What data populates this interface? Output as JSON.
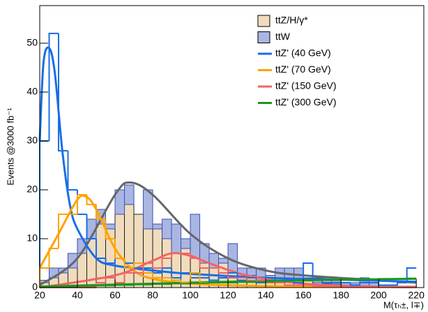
{
  "chart_data": {
    "type": "histogram",
    "xlabel": "M(τₕ±, l∓)",
    "ylabel": "Events @3000 fb⁻¹",
    "bins": [
      20,
      25,
      30,
      35,
      40,
      45,
      50,
      55,
      60,
      65,
      70,
      75,
      80,
      85,
      90,
      95,
      100,
      105,
      110,
      115,
      120,
      125,
      130,
      135,
      140,
      145,
      150,
      155,
      160,
      165,
      170,
      175,
      180,
      185,
      190,
      195,
      200,
      205,
      210,
      215,
      220
    ],
    "xlim": [
      20,
      224
    ],
    "xticks": [
      20,
      40,
      60,
      80,
      100,
      120,
      140,
      160,
      180,
      200,
      220
    ],
    "ylim": [
      0,
      57.7
    ],
    "yticks": [
      0,
      10,
      20,
      30,
      40,
      50
    ],
    "legend": "upper right",
    "series": [
      {
        "name": "ttZ/H/γ*",
        "color": "#f0dcbc",
        "stacked": true,
        "values": [
          1,
          2,
          3,
          4,
          7,
          10,
          13,
          12,
          15,
          17,
          15,
          12,
          12,
          10,
          7,
          8,
          6,
          5,
          4,
          5,
          3,
          2,
          2.5,
          1.5,
          2,
          1.5,
          1,
          1,
          1.5,
          1,
          0.8,
          0.7,
          0.5,
          0.5,
          0.4,
          0.3,
          0.2,
          0.2,
          0.1,
          0.1
        ]
      },
      {
        "name": "ttW",
        "color": "#aab6e2",
        "stacked": true,
        "values": [
          0.5,
          2,
          1,
          3,
          3,
          4,
          3,
          1,
          5,
          4,
          0,
          8,
          1,
          4,
          6,
          2,
          9,
          4,
          3,
          1,
          6,
          2,
          1.5,
          2.5,
          0.5,
          2.5,
          3,
          3,
          0.5,
          1,
          1.2,
          0.8,
          0.5,
          0.5,
          1.6,
          0.7,
          0.3,
          0.3,
          0.2,
          0.2
        ]
      },
      {
        "name": "ttZ' (40 GeV)",
        "color": "#1a6ee6",
        "stacked": false,
        "values": [
          30,
          52,
          28,
          20,
          15,
          10,
          6,
          5,
          6,
          5,
          4,
          4,
          3,
          4,
          2,
          3,
          2,
          2,
          1.5,
          2,
          3,
          1.5,
          2,
          1,
          2,
          1,
          1.5,
          1,
          5,
          1.5,
          1,
          1,
          1,
          0.5,
          1,
          1,
          0.5,
          0.5,
          1,
          4
        ]
      },
      {
        "name": "ttZ' (70 GeV)",
        "color": "#ffa200",
        "stacked": false,
        "values": [
          4,
          8,
          15,
          15,
          19,
          17,
          14,
          10,
          6,
          4,
          5,
          3,
          2,
          2,
          1.5,
          1,
          3,
          1,
          1,
          0.5,
          0.5,
          0.5,
          0.3,
          0.3,
          0.3,
          0.2,
          0.2,
          0.2,
          0.2,
          0.2,
          0.1,
          0.1,
          0.1,
          0.1,
          0.1,
          0.1,
          0.1,
          0.1,
          0.1,
          0.1
        ]
      },
      {
        "name": "ttZ' (150 GeV)",
        "color": "#f26464",
        "stacked": false,
        "values": [
          0,
          0,
          0,
          0,
          0,
          0,
          1,
          2,
          1,
          3,
          3,
          5,
          4,
          6,
          7,
          7,
          6,
          4,
          4,
          3,
          2,
          2,
          1.5,
          1.5,
          1,
          1,
          0.5,
          0.5,
          0.5,
          0.3,
          0.3,
          0.3,
          0.2,
          0.2,
          0.2,
          0.1,
          0.1,
          0.1,
          0.1,
          0.1
        ]
      },
      {
        "name": "ttZ' (300 GeV)",
        "color": "#1c961c",
        "stacked": false,
        "values": [
          0.1,
          0.1,
          0.2,
          0.2,
          0.3,
          0.3,
          0.4,
          0.4,
          0.5,
          0.5,
          0.6,
          0.6,
          0.7,
          0.7,
          0.8,
          0.8,
          0.9,
          0.9,
          1,
          1,
          1,
          1.1,
          1.1,
          1.2,
          1.2,
          1.3,
          1.3,
          1.4,
          1.4,
          1.5,
          1.5,
          1.5,
          1.6,
          1.6,
          1.7,
          1.7,
          1.8,
          1.8,
          1.8,
          1.9
        ]
      }
    ],
    "fits": [
      {
        "color": "#666666",
        "x": [
          20,
          40,
          60,
          68,
          80,
          100,
          120,
          140,
          160,
          200,
          220
        ],
        "values": [
          0.5,
          6,
          19,
          21.5,
          19,
          11,
          6,
          3.5,
          2.5,
          1.5,
          1
        ]
      },
      {
        "color": "#1a6ee6",
        "x": [
          20,
          22,
          25,
          28,
          32,
          36,
          40,
          50,
          60,
          80,
          100,
          140,
          180,
          220
        ],
        "values": [
          30,
          46,
          49,
          44,
          28,
          17,
          12,
          6,
          4.5,
          3.5,
          2.8,
          2,
          1.6,
          1.2
        ]
      },
      {
        "color": "#ffa200",
        "x": [
          20,
          30,
          40,
          45,
          50,
          60,
          70,
          80,
          100,
          140,
          220
        ],
        "values": [
          4,
          11,
          18,
          18.5,
          16,
          8,
          3.5,
          1.8,
          0.8,
          0.3,
          0.1
        ]
      },
      {
        "color": "#f26464",
        "x": [
          20,
          60,
          80,
          90,
          100,
          110,
          130,
          160,
          200,
          220
        ],
        "values": [
          0,
          2.5,
          5.5,
          7,
          6.5,
          5,
          2.5,
          0.8,
          0.2,
          0.1
        ]
      },
      {
        "color": "#1c961c",
        "x": [
          20,
          100,
          160,
          220
        ],
        "values": [
          0.2,
          1,
          1.5,
          1.8
        ]
      }
    ]
  }
}
